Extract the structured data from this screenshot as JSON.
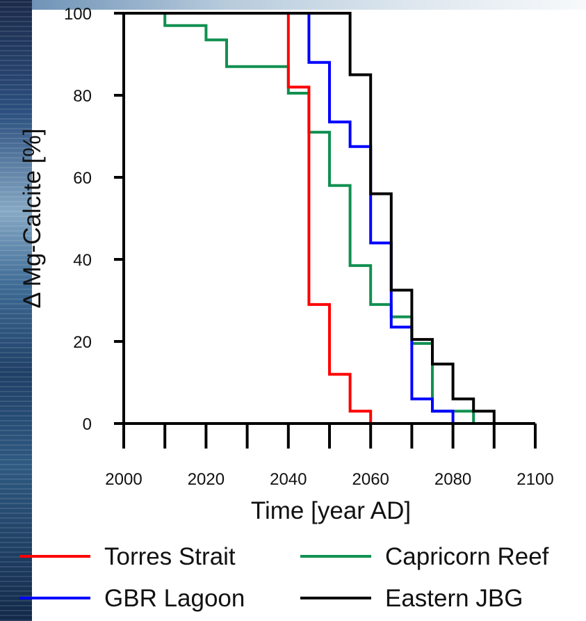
{
  "chart_data": {
    "type": "line",
    "step": true,
    "xlabel": "Time [year AD]",
    "ylabel": "Δ Mg-Calcite [%]",
    "xlim": [
      2000,
      2100
    ],
    "ylim": [
      0,
      100
    ],
    "xticks": [
      2000,
      2020,
      2040,
      2060,
      2080,
      2100
    ],
    "xtick_labels": [
      "2000",
      "2020",
      "2040",
      "2060",
      "2080",
      "2100"
    ],
    "yticks": [
      0,
      20,
      40,
      60,
      80,
      100
    ],
    "ytick_labels": [
      "0",
      "20",
      "40",
      "60",
      "80",
      "100"
    ],
    "grid": false,
    "legend_position": "bottom",
    "series": [
      {
        "name": "Torres Strait",
        "color": "#ff0000",
        "x": [
          2000,
          2040,
          2040,
          2045,
          2045,
          2050,
          2050,
          2055,
          2055,
          2060,
          2060,
          2090
        ],
        "y": [
          100,
          100,
          82,
          82,
          29,
          29,
          12,
          12,
          3,
          3,
          0,
          0
        ]
      },
      {
        "name": "GBR Lagoon",
        "color": "#0000ff",
        "x": [
          2000,
          2045,
          2045,
          2050,
          2050,
          2055,
          2055,
          2060,
          2060,
          2065,
          2065,
          2070,
          2070,
          2075,
          2075,
          2080,
          2080,
          2090
        ],
        "y": [
          100,
          100,
          88,
          88,
          73.5,
          73.5,
          67.5,
          67.5,
          44,
          44,
          23.5,
          23.5,
          6,
          6,
          3,
          3,
          0,
          0
        ]
      },
      {
        "name": "Capricorn Reef",
        "color": "#109050",
        "x": [
          2000,
          2010,
          2010,
          2020,
          2020,
          2025,
          2025,
          2040,
          2040,
          2045,
          2045,
          2050,
          2050,
          2055,
          2055,
          2060,
          2060,
          2065,
          2065,
          2070,
          2070,
          2075,
          2075,
          2085,
          2085,
          2090
        ],
        "y": [
          100,
          100,
          97,
          97,
          93.5,
          93.5,
          87,
          87,
          80.5,
          80.5,
          71,
          71,
          58,
          58,
          38.5,
          38.5,
          29,
          29,
          26,
          26,
          19.5,
          19.5,
          3,
          3,
          0,
          0
        ]
      },
      {
        "name": "Eastern JBG",
        "color": "#000000",
        "x": [
          2000,
          2055,
          2055,
          2060,
          2060,
          2065,
          2065,
          2070,
          2070,
          2075,
          2075,
          2080,
          2080,
          2085,
          2085,
          2090,
          2090
        ],
        "y": [
          100,
          100,
          85,
          85,
          56,
          56,
          32.5,
          32.5,
          20.5,
          20.5,
          14.5,
          14.5,
          6,
          6,
          3,
          3,
          0
        ]
      }
    ]
  }
}
